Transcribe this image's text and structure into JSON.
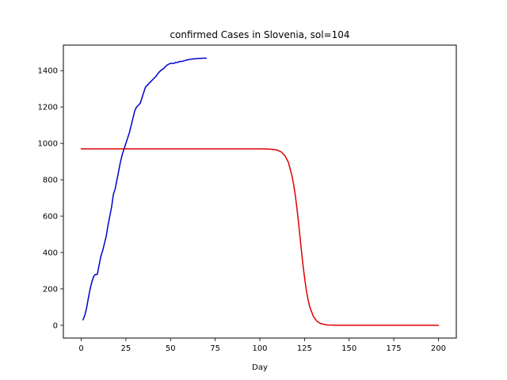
{
  "chart_data": {
    "type": "line",
    "title": "confirmed Cases in Slovenia, sol=104",
    "xlabel": "Day",
    "ylabel": "",
    "xlim": [
      -10,
      210
    ],
    "ylim": [
      -70,
      1540
    ],
    "x_ticks": [
      0,
      25,
      50,
      75,
      100,
      125,
      150,
      175,
      200
    ],
    "y_ticks": [
      0,
      200,
      400,
      600,
      800,
      1000,
      1200,
      1400
    ],
    "grid": false,
    "legend": "none",
    "series": [
      {
        "color": "#0000cc",
        "x": [
          1,
          2,
          3,
          4,
          5,
          6,
          7,
          8,
          9,
          10,
          11,
          12,
          13,
          14,
          15,
          16,
          17,
          18,
          19,
          20,
          21,
          22,
          23,
          24,
          25,
          26,
          27,
          28,
          29,
          30,
          31,
          32,
          33,
          34,
          35,
          36,
          37,
          38,
          39,
          40,
          41,
          42,
          43,
          44,
          45,
          46,
          47,
          48,
          49,
          50,
          51,
          52,
          53,
          54,
          55,
          56,
          57,
          58,
          59,
          60,
          61,
          62,
          63,
          64,
          65,
          66,
          67,
          68,
          69,
          70
        ],
        "values": [
          30,
          55,
          95,
          150,
          200,
          240,
          270,
          280,
          280,
          330,
          380,
          410,
          450,
          490,
          550,
          600,
          650,
          720,
          750,
          800,
          850,
          900,
          940,
          970,
          1000,
          1030,
          1060,
          1100,
          1140,
          1180,
          1200,
          1210,
          1220,
          1250,
          1280,
          1310,
          1320,
          1330,
          1340,
          1350,
          1360,
          1370,
          1385,
          1395,
          1405,
          1410,
          1420,
          1430,
          1435,
          1440,
          1440,
          1440,
          1445,
          1445,
          1450,
          1450,
          1452,
          1455,
          1458,
          1460,
          1462,
          1463,
          1465,
          1465,
          1466,
          1467,
          1467,
          1468,
          1468,
          1468
        ]
      },
      {
        "color": "#dd0000",
        "x": [
          0,
          20,
          40,
          60,
          80,
          100,
          105,
          108,
          110,
          112,
          114,
          116,
          118,
          119,
          120,
          121,
          122,
          123,
          124,
          125,
          126,
          127,
          128,
          130,
          132,
          134,
          136,
          138,
          140,
          145,
          150,
          175,
          200
        ],
        "values": [
          970,
          970,
          970,
          970,
          970,
          970,
          969,
          966,
          962,
          953,
          933,
          896,
          821,
          771,
          704,
          623,
          533,
          438,
          344,
          265,
          195,
          142,
          100,
          48,
          22,
          10,
          5,
          2,
          1,
          0,
          0,
          0,
          0
        ]
      }
    ]
  }
}
